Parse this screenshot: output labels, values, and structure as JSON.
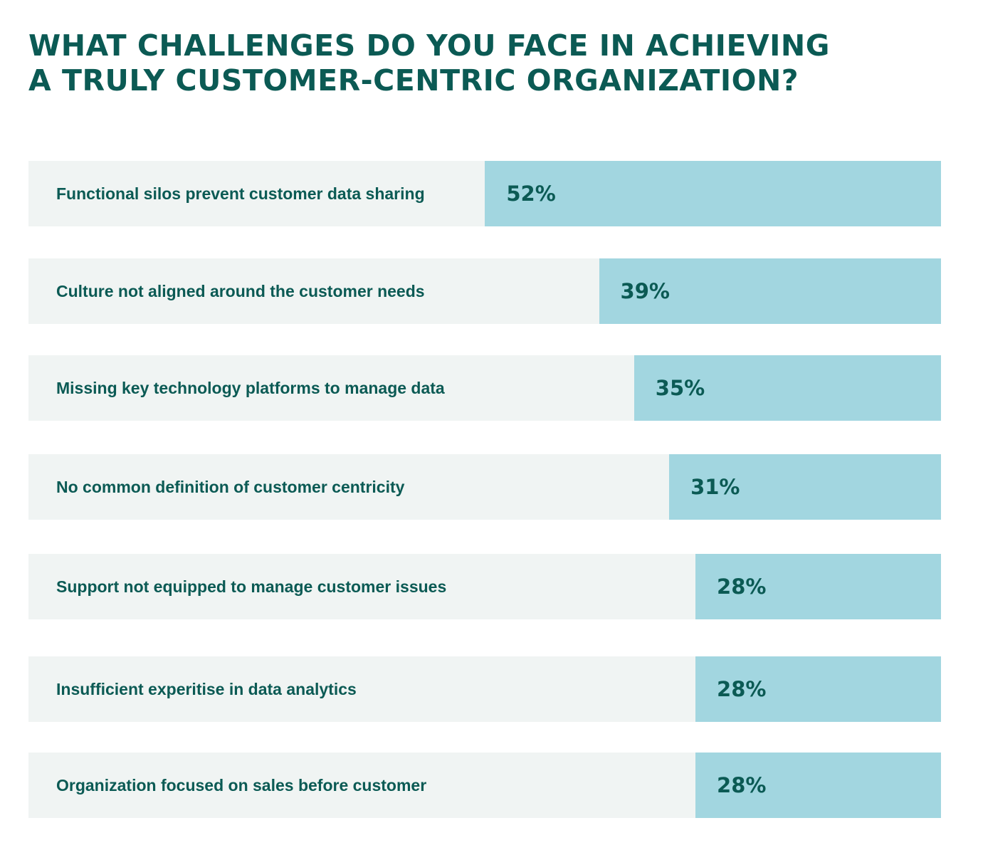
{
  "chart_data": {
    "type": "bar",
    "orientation": "horizontal",
    "title_lines": [
      "WHAT CHALLENGES DO YOU FACE IN ACHIEVING",
      "A TRULY CUSTOMER-CENTRIC ORGANIZATION?"
    ],
    "categories": [
      "Functional silos prevent customer data sharing",
      "Culture not aligned around the customer needs",
      "Missing key technology platforms to manage data",
      "No common definition of customer centricity",
      "Support not equipped to manage customer issues",
      "Insufficient experitise in data analytics",
      "Organization focused on sales before customer"
    ],
    "values": [
      52,
      39,
      35,
      31,
      28,
      28,
      28
    ],
    "value_labels": [
      "52%",
      "39%",
      "35%",
      "31%",
      "28%",
      "28%",
      "28%"
    ],
    "unit": "%",
    "bar_alignment": "right",
    "grid": false,
    "legend": "none",
    "colors": {
      "title": "#0b5a54",
      "text": "#0b5a54",
      "row_background": "#f0f4f3",
      "bar": "#a2d6e0"
    }
  }
}
